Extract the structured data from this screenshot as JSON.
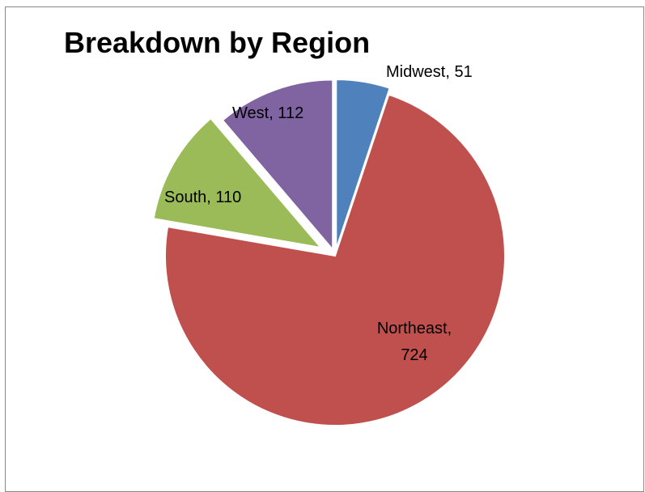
{
  "chart_data": {
    "type": "pie",
    "title": "Breakdown by Region",
    "slices": [
      {
        "label": "Midwest",
        "value": 51,
        "color": "#4f81bd",
        "data_label": "Midwest, 51"
      },
      {
        "label": "Northeast",
        "value": 724,
        "color": "#c0504d",
        "data_label_lines": [
          "Northeast,",
          "724"
        ]
      },
      {
        "label": "South",
        "value": 110,
        "color": "#9bbb59",
        "data_label": "South, 110"
      },
      {
        "label": "West",
        "value": 112,
        "color": "#8064a2",
        "data_label": "West, 112"
      }
    ],
    "legend": "none",
    "exploded": true
  }
}
